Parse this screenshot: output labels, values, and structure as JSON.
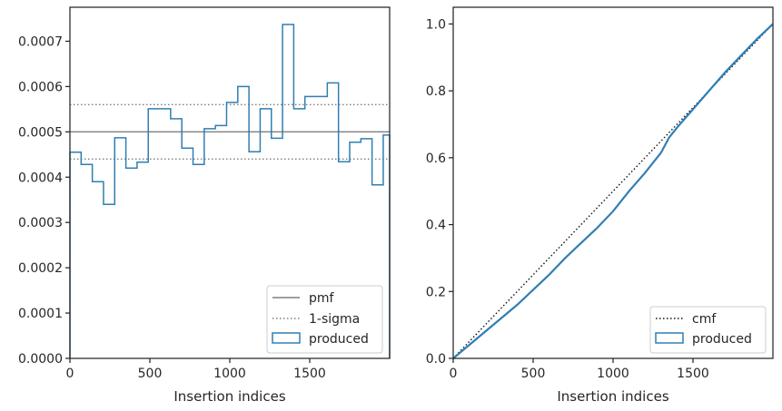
{
  "chart_data": [
    {
      "type": "histogram-step",
      "xlabel": "Insertion indices",
      "xlim": [
        0,
        2000
      ],
      "ylim": [
        0,
        0.000775
      ],
      "xticks": [
        0,
        500,
        1000,
        1500
      ],
      "yticks": [
        0,
        0.0001,
        0.0002,
        0.0003,
        0.0004,
        0.0005,
        0.0006,
        0.0007
      ],
      "ytick_labels": [
        "0.0000",
        "0.0001",
        "0.0002",
        "0.0003",
        "0.0004",
        "0.0005",
        "0.0006",
        "0.0007"
      ],
      "legend_position": "lower-right",
      "reference_lines": [
        {
          "name": "pmf",
          "y": 0.0005,
          "style": "solid",
          "color": "#7f7f7f"
        },
        {
          "name": "1-sigma",
          "y": 0.00056,
          "style": "dotted",
          "color": "#7f7f7f"
        },
        {
          "name": "",
          "y": 0.00044,
          "style": "dotted",
          "color": "#7f7f7f"
        }
      ],
      "series": [
        {
          "name": "produced",
          "color": "#2f7fb2",
          "bin_edges": [
            0,
            70,
            140,
            210,
            280,
            350,
            420,
            490,
            560,
            630,
            700,
            770,
            840,
            910,
            980,
            1050,
            1120,
            1190,
            1260,
            1330,
            1400,
            1470,
            1540,
            1610,
            1680,
            1750,
            1820,
            1890,
            1960,
            2000
          ],
          "values": [
            0.000455,
            0.000428,
            0.00039,
            0.00034,
            0.000487,
            0.00042,
            0.000433,
            0.000551,
            0.000551,
            0.000529,
            0.000464,
            0.000428,
            0.000507,
            0.000514,
            0.000565,
            0.0006,
            0.000456,
            0.000551,
            0.000486,
            0.000737,
            0.000551,
            0.000578,
            0.000578,
            0.000608,
            0.000434,
            0.000477,
            0.000485,
            0.000383,
            0.000493
          ]
        }
      ]
    },
    {
      "type": "line",
      "xlabel": "Insertion indices",
      "xlim": [
        0,
        2000
      ],
      "ylim": [
        0,
        1.05
      ],
      "xticks": [
        0,
        500,
        1000,
        1500
      ],
      "yticks": [
        0.0,
        0.2,
        0.4,
        0.6,
        0.8,
        1.0
      ],
      "ytick_labels": [
        "0.0",
        "0.2",
        "0.4",
        "0.6",
        "0.8",
        "1.0"
      ],
      "legend_position": "lower-right",
      "series": [
        {
          "name": "cmf",
          "style": "dotted",
          "color": "#111111",
          "x": [
            0,
            2000
          ],
          "y": [
            0,
            1
          ]
        },
        {
          "name": "produced",
          "color": "#2f7fb2",
          "x": [
            0,
            100,
            200,
            300,
            400,
            500,
            600,
            700,
            800,
            900,
            1000,
            1100,
            1200,
            1300,
            1350,
            1400,
            1500,
            1600,
            1700,
            1800,
            1900,
            2000
          ],
          "y": [
            0,
            0.04,
            0.08,
            0.12,
            0.16,
            0.205,
            0.25,
            0.3,
            0.345,
            0.39,
            0.44,
            0.5,
            0.555,
            0.615,
            0.66,
            0.69,
            0.745,
            0.8,
            0.855,
            0.905,
            0.955,
            1.0
          ]
        }
      ]
    }
  ]
}
